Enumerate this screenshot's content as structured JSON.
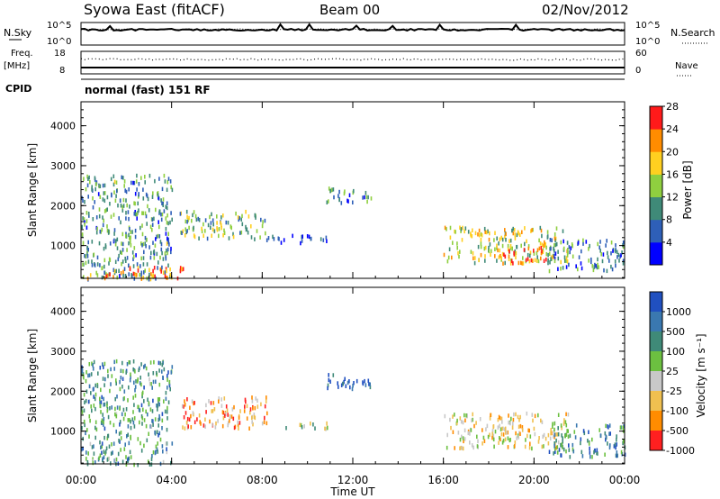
{
  "header": {
    "radar": "Syowa East (fitACF)",
    "beam": "Beam 00",
    "date": "02/Nov/2012"
  },
  "top_panels": {
    "nsky_label": "N.Sky",
    "nsearch_label": "N.Search",
    "noise_ticks": [
      "10^5",
      "10^0"
    ],
    "freq_label": "Freq.",
    "freq_unit": "[MHz]",
    "freq_ticks": [
      "18",
      "8"
    ],
    "nave_ticks": [
      "60",
      "0"
    ],
    "nave_label": "Nave",
    "cpid_label": "CPID",
    "cpid_value": "normal (fast) 151 RF"
  },
  "chart_data": [
    {
      "type": "heatmap",
      "xlabel": "Time UT",
      "ylabel": "Slant Range [km]",
      "x_ticks": [
        "00:00",
        "04:00",
        "08:00",
        "12:00",
        "16:00",
        "20:00",
        "00:00"
      ],
      "xlim_hours": [
        0,
        24
      ],
      "y_ticks": [
        1000,
        2000,
        3000,
        4000
      ],
      "ylim": [
        180,
        4600
      ],
      "colorbar": {
        "label": "Power [dB]",
        "ticks": [
          "4",
          "8",
          "12",
          "16",
          "20",
          "24",
          "28"
        ],
        "colors": [
          "#0000ff",
          "#2e5fb8",
          "#3f8a78",
          "#8fcf3f",
          "#ffd020",
          "#ff8c00",
          "#ff1a1a"
        ]
      },
      "regions": [
        {
          "t": [
            0.0,
            4.0
          ],
          "r": [
            200,
            2800
          ],
          "level": 0.35
        },
        {
          "t": [
            0.2,
            4.5
          ],
          "r": [
            200,
            500
          ],
          "level": 0.8
        },
        {
          "t": [
            4.3,
            8.2
          ],
          "r": [
            1200,
            1900
          ],
          "level": 0.45
        },
        {
          "t": [
            8.0,
            11.0
          ],
          "r": [
            1100,
            1300
          ],
          "level": 0.15
        },
        {
          "t": [
            10.8,
            12.8
          ],
          "r": [
            2100,
            2500
          ],
          "level": 0.3
        },
        {
          "t": [
            16.0,
            21.5
          ],
          "r": [
            600,
            1500
          ],
          "level": 0.55
        },
        {
          "t": [
            18.3,
            20.6
          ],
          "r": [
            600,
            1000
          ],
          "level": 0.85
        },
        {
          "t": [
            20.5,
            24.0
          ],
          "r": [
            400,
            1200
          ],
          "level": 0.3
        }
      ]
    },
    {
      "type": "heatmap",
      "xlabel": "Time UT",
      "ylabel": "Slant Range [km]",
      "x_ticks": [
        "00:00",
        "04:00",
        "08:00",
        "12:00",
        "16:00",
        "20:00",
        "00:00"
      ],
      "xlim_hours": [
        0,
        24
      ],
      "y_ticks": [
        1000,
        2000,
        3000,
        4000
      ],
      "ylim": [
        180,
        4600
      ],
      "colorbar": {
        "label": "Velocity [m s⁻¹]",
        "ticks": [
          "1000",
          "500",
          "100",
          "25",
          "-25",
          "-100",
          "-500",
          "-1000"
        ],
        "colors": [
          "#2050c0",
          "#3a78b0",
          "#3f8a78",
          "#6cc040",
          "#c8c8c8",
          "#f0c050",
          "#ff8c00",
          "#ff2020"
        ]
      },
      "regions": [
        {
          "t": [
            0.0,
            4.0
          ],
          "r": [
            200,
            2800
          ],
          "level": 0.3
        },
        {
          "t": [
            4.3,
            8.2
          ],
          "r": [
            1100,
            1900
          ],
          "level": 0.75
        },
        {
          "t": [
            8.5,
            11.0
          ],
          "r": [
            1100,
            1250
          ],
          "level": 0.5
        },
        {
          "t": [
            10.8,
            12.8
          ],
          "r": [
            2100,
            2500
          ],
          "level": 0.1
        },
        {
          "t": [
            16.0,
            21.5
          ],
          "r": [
            600,
            1500
          ],
          "level": 0.6
        },
        {
          "t": [
            20.5,
            24.0
          ],
          "r": [
            400,
            1200
          ],
          "level": 0.25
        }
      ]
    }
  ]
}
